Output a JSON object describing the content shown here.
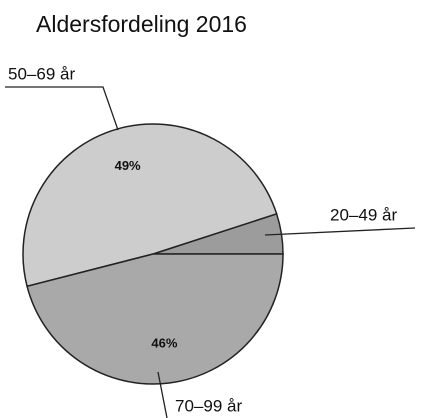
{
  "chart_data": {
    "type": "pie",
    "title": "Aldersfordeling 2016",
    "categories": [
      "20–49 år",
      "50–69 år",
      "70–99 år"
    ],
    "values": [
      5,
      49,
      46
    ],
    "value_labels": [
      null,
      "49%",
      "46%"
    ],
    "colors": [
      "#9c9c9c",
      "#cdcdcd",
      "#a9a9a9"
    ]
  }
}
